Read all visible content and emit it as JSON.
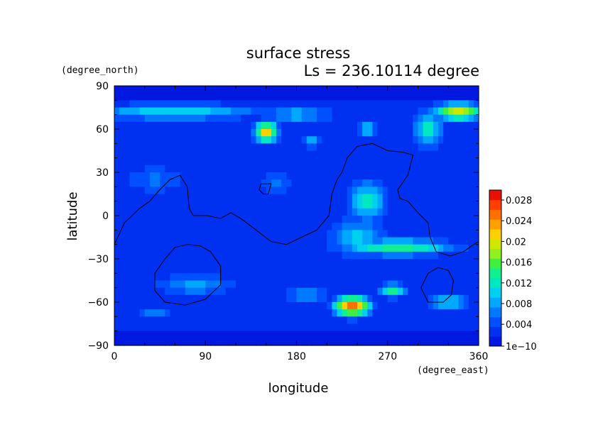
{
  "chart_data": {
    "type": "heatmap",
    "title": "surface stress",
    "subtitle": "Ls = 236.10114 degree",
    "xlabel": "longitude",
    "ylabel": "latitude",
    "xunit": "(degree_east)",
    "yunit": "(degree_north)",
    "xlim": [
      0,
      360
    ],
    "ylim": [
      -90,
      90
    ],
    "xticks": [
      "0",
      "90",
      "180",
      "270",
      "360"
    ],
    "yticks": [
      "90",
      "60",
      "30",
      "0",
      "−30",
      "−60",
      "−90"
    ],
    "colorbar": {
      "ticks": [
        "0.028",
        "0.024",
        "0.02",
        "0.016",
        "0.012",
        "0.008",
        "0.004",
        "1e−10"
      ],
      "colors": [
        "#0018e0",
        "#0030f0",
        "#0050ff",
        "#0078ff",
        "#00a8ff",
        "#00d0f0",
        "#00e8c0",
        "#10f090",
        "#40f040",
        "#90f020",
        "#d0e800",
        "#ffd000",
        "#ffa000",
        "#ff7000",
        "#ff4000",
        "#e81000"
      ]
    },
    "field": {
      "blobs": [
        {
          "lon": 60,
          "lat": 72,
          "rl": 90,
          "rt": 6,
          "v": 0.011
        },
        {
          "lon": 180,
          "lat": 70,
          "rl": 40,
          "rt": 6,
          "v": 0.009
        },
        {
          "lon": 150,
          "lat": 58,
          "rl": 12,
          "rt": 7,
          "v": 0.022
        },
        {
          "lon": 340,
          "lat": 72,
          "rl": 25,
          "rt": 6,
          "v": 0.02
        },
        {
          "lon": 310,
          "lat": 60,
          "rl": 15,
          "rt": 14,
          "v": 0.012
        },
        {
          "lon": 250,
          "lat": 60,
          "rl": 10,
          "rt": 4,
          "v": 0.012
        },
        {
          "lon": 195,
          "lat": 52,
          "rl": 12,
          "rt": 6,
          "v": 0.008
        },
        {
          "lon": 280,
          "lat": -22,
          "rl": 60,
          "rt": 6,
          "v": 0.014
        },
        {
          "lon": 240,
          "lat": -15,
          "rl": 30,
          "rt": 14,
          "v": 0.01
        },
        {
          "lon": 250,
          "lat": 10,
          "rl": 20,
          "rt": 15,
          "v": 0.012
        },
        {
          "lon": 235,
          "lat": -63,
          "rl": 18,
          "rt": 7,
          "v": 0.026
        },
        {
          "lon": 275,
          "lat": -52,
          "rl": 15,
          "rt": 5,
          "v": 0.014
        },
        {
          "lon": 330,
          "lat": -60,
          "rl": 25,
          "rt": 6,
          "v": 0.01
        },
        {
          "lon": 80,
          "lat": -48,
          "rl": 45,
          "rt": 8,
          "v": 0.008
        },
        {
          "lon": 190,
          "lat": -55,
          "rl": 30,
          "rt": 5,
          "v": 0.008
        },
        {
          "lon": 40,
          "lat": 25,
          "rl": 40,
          "rt": 12,
          "v": 0.006
        },
        {
          "lon": 160,
          "lat": 22,
          "rl": 20,
          "rt": 10,
          "v": 0.006
        },
        {
          "lon": 40,
          "lat": -68,
          "rl": 20,
          "rt": 4,
          "v": 0.007
        }
      ],
      "background": 0.003
    },
    "coastlines": [
      [
        [
          0,
          -20
        ],
        [
          10,
          -5
        ],
        [
          25,
          5
        ],
        [
          35,
          10
        ],
        [
          45,
          18
        ],
        [
          55,
          25
        ],
        [
          65,
          28
        ],
        [
          72,
          20
        ],
        [
          74,
          5
        ],
        [
          78,
          0
        ],
        [
          92,
          0
        ],
        [
          105,
          -2
        ],
        [
          115,
          2
        ],
        [
          125,
          -2
        ],
        [
          140,
          -10
        ],
        [
          155,
          -18
        ],
        [
          170,
          -20
        ],
        [
          185,
          -15
        ],
        [
          200,
          -10
        ],
        [
          212,
          0
        ],
        [
          215,
          15
        ],
        [
          220,
          25
        ],
        [
          225,
          30
        ],
        [
          230,
          40
        ],
        [
          240,
          48
        ],
        [
          255,
          50
        ],
        [
          270,
          45
        ],
        [
          285,
          44
        ],
        [
          295,
          42
        ],
        [
          290,
          28
        ],
        [
          280,
          18
        ],
        [
          282,
          12
        ],
        [
          290,
          10
        ],
        [
          300,
          2
        ],
        [
          310,
          -5
        ],
        [
          312,
          -15
        ],
        [
          318,
          -25
        ],
        [
          332,
          -28
        ],
        [
          345,
          -25
        ],
        [
          355,
          -20
        ],
        [
          360,
          -18
        ]
      ],
      [
        [
          72,
          -20
        ],
        [
          60,
          -22
        ],
        [
          50,
          -30
        ],
        [
          40,
          -40
        ],
        [
          40,
          -52
        ],
        [
          50,
          -60
        ],
        [
          70,
          -62
        ],
        [
          90,
          -58
        ],
        [
          105,
          -48
        ],
        [
          105,
          -35
        ],
        [
          95,
          -25
        ],
        [
          85,
          -21
        ],
        [
          72,
          -20
        ]
      ],
      [
        [
          145,
          22
        ],
        [
          155,
          22
        ],
        [
          152,
          15
        ],
        [
          147,
          15
        ],
        [
          143,
          18
        ],
        [
          145,
          22
        ]
      ],
      [
        [
          320,
          -36
        ],
        [
          310,
          -40
        ],
        [
          303,
          -50
        ],
        [
          310,
          -60
        ],
        [
          325,
          -60
        ],
        [
          333,
          -55
        ],
        [
          335,
          -45
        ],
        [
          330,
          -38
        ],
        [
          320,
          -36
        ]
      ]
    ]
  }
}
